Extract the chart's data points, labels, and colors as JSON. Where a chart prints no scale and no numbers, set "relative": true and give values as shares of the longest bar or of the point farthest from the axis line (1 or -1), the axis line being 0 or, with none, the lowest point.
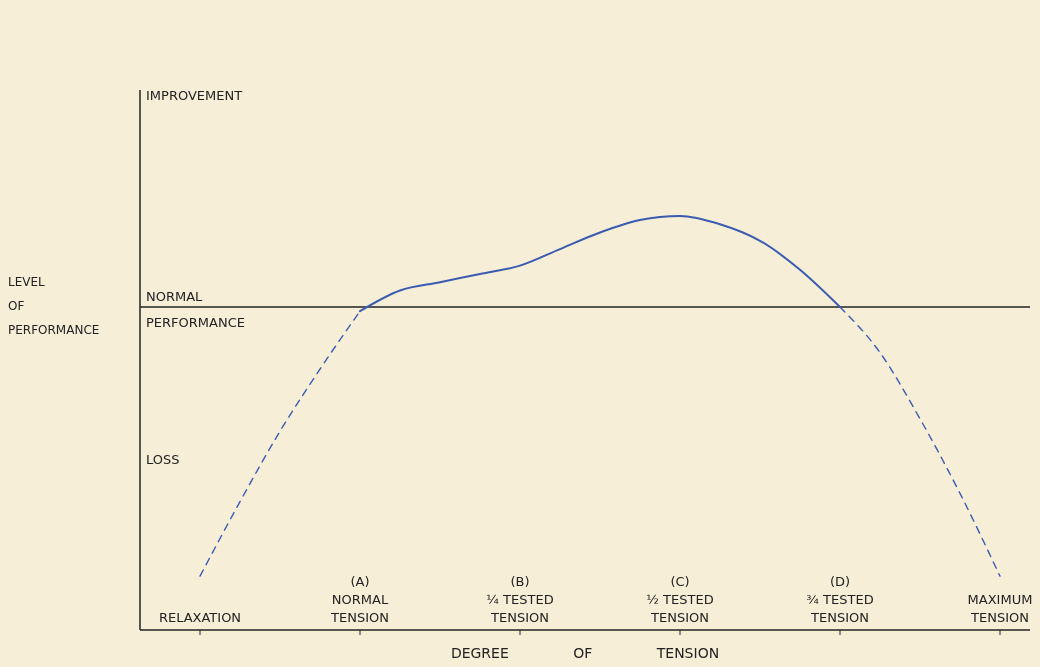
{
  "chart_data": {
    "type": "line",
    "relative": true,
    "xlabel": "DEGREE OF TENSION",
    "ylabel": "LEVEL\nOF\nPERFORMANCE",
    "categories": [
      "RELAXATION",
      null,
      null,
      null,
      "(A)\nNORMAL\nTENSION",
      null,
      null,
      null,
      "(B)\n¼ TESTED\nTENSION",
      null,
      null,
      null,
      "(C)\n½ TESTED\nTENSION",
      null,
      null,
      null,
      "(D)\n¾ TESTED\nTENSION",
      null,
      null,
      null,
      "MAXIMUM\nTENSION"
    ],
    "annotations": [
      "IMPROVEMENT",
      "LOSS"
    ],
    "ref_lines": [
      {
        "axis": "y",
        "value": 0.78,
        "label": "NORMAL\nPERFORMANCE",
        "color": "#222222"
      }
    ],
    "series": [
      {
        "color": "#3a5bb0",
        "line_style": "dashed",
        "values": [
          0.13,
          0.31,
          0.48,
          0.63,
          0.77,
          null,
          null,
          null,
          null,
          null,
          null,
          null,
          null,
          null,
          null,
          null,
          null,
          null,
          null,
          null,
          null
        ]
      },
      {
        "color": "#3a5bb0",
        "line_style": "solid",
        "values": [
          null,
          null,
          null,
          null,
          0.77,
          0.82,
          0.84,
          0.86,
          0.88,
          0.92,
          0.96,
          0.99,
          1.0,
          0.98,
          0.94,
          0.87,
          0.78,
          null,
          null,
          null,
          null
        ]
      },
      {
        "color": "#3a5bb0",
        "line_style": "dashed",
        "values": [
          null,
          null,
          null,
          null,
          null,
          null,
          null,
          null,
          null,
          null,
          null,
          null,
          null,
          null,
          null,
          null,
          0.78,
          0.67,
          0.51,
          0.33,
          0.13
        ]
      }
    ]
  }
}
